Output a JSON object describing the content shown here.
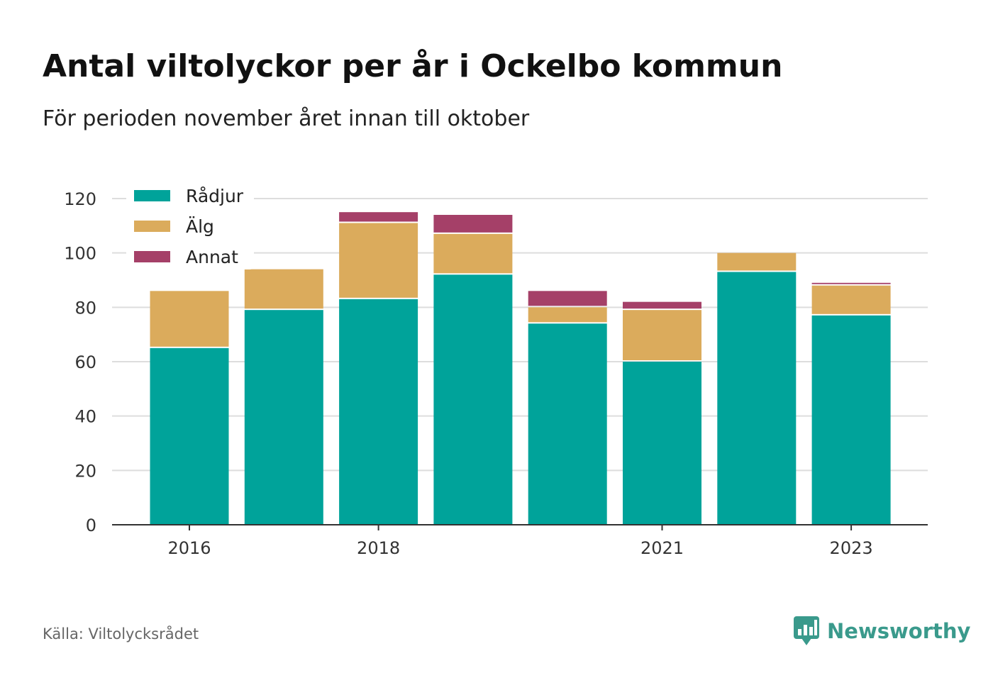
{
  "title": "Antal viltolyckor per år i Ockelbo kommun",
  "subtitle": "För perioden november året innan till oktober",
  "source": "Källa: Viltolycksrådet",
  "brand": {
    "name": "Newsworthy",
    "icon": "newsworthy-logo-icon"
  },
  "colors": {
    "radjur": "#00a39a",
    "alg": "#dbab5c",
    "annat": "#a54068",
    "grid": "#dddddd",
    "axis": "#333333"
  },
  "chart_data": {
    "type": "bar",
    "stacked": true,
    "categories": [
      "2016",
      "2017",
      "2018",
      "2019",
      "2020",
      "2021",
      "2022",
      "2023"
    ],
    "x_tick_labels": [
      "2016",
      "2018",
      "2021",
      "2023"
    ],
    "series": [
      {
        "name": "Rådjur",
        "color": "#00a39a",
        "values": [
          65,
          79,
          83,
          92,
          74,
          60,
          93,
          77
        ]
      },
      {
        "name": "Älg",
        "color": "#dbab5c",
        "values": [
          21,
          15,
          28,
          15,
          6,
          19,
          7,
          11
        ]
      },
      {
        "name": "Annat",
        "color": "#a54068",
        "values": [
          0,
          0,
          4,
          7,
          6,
          3,
          0,
          1
        ]
      }
    ],
    "ylim": [
      0,
      120
    ],
    "yticks": [
      0,
      20,
      40,
      60,
      80,
      100,
      120
    ],
    "grid": true,
    "legend": "top-left"
  }
}
